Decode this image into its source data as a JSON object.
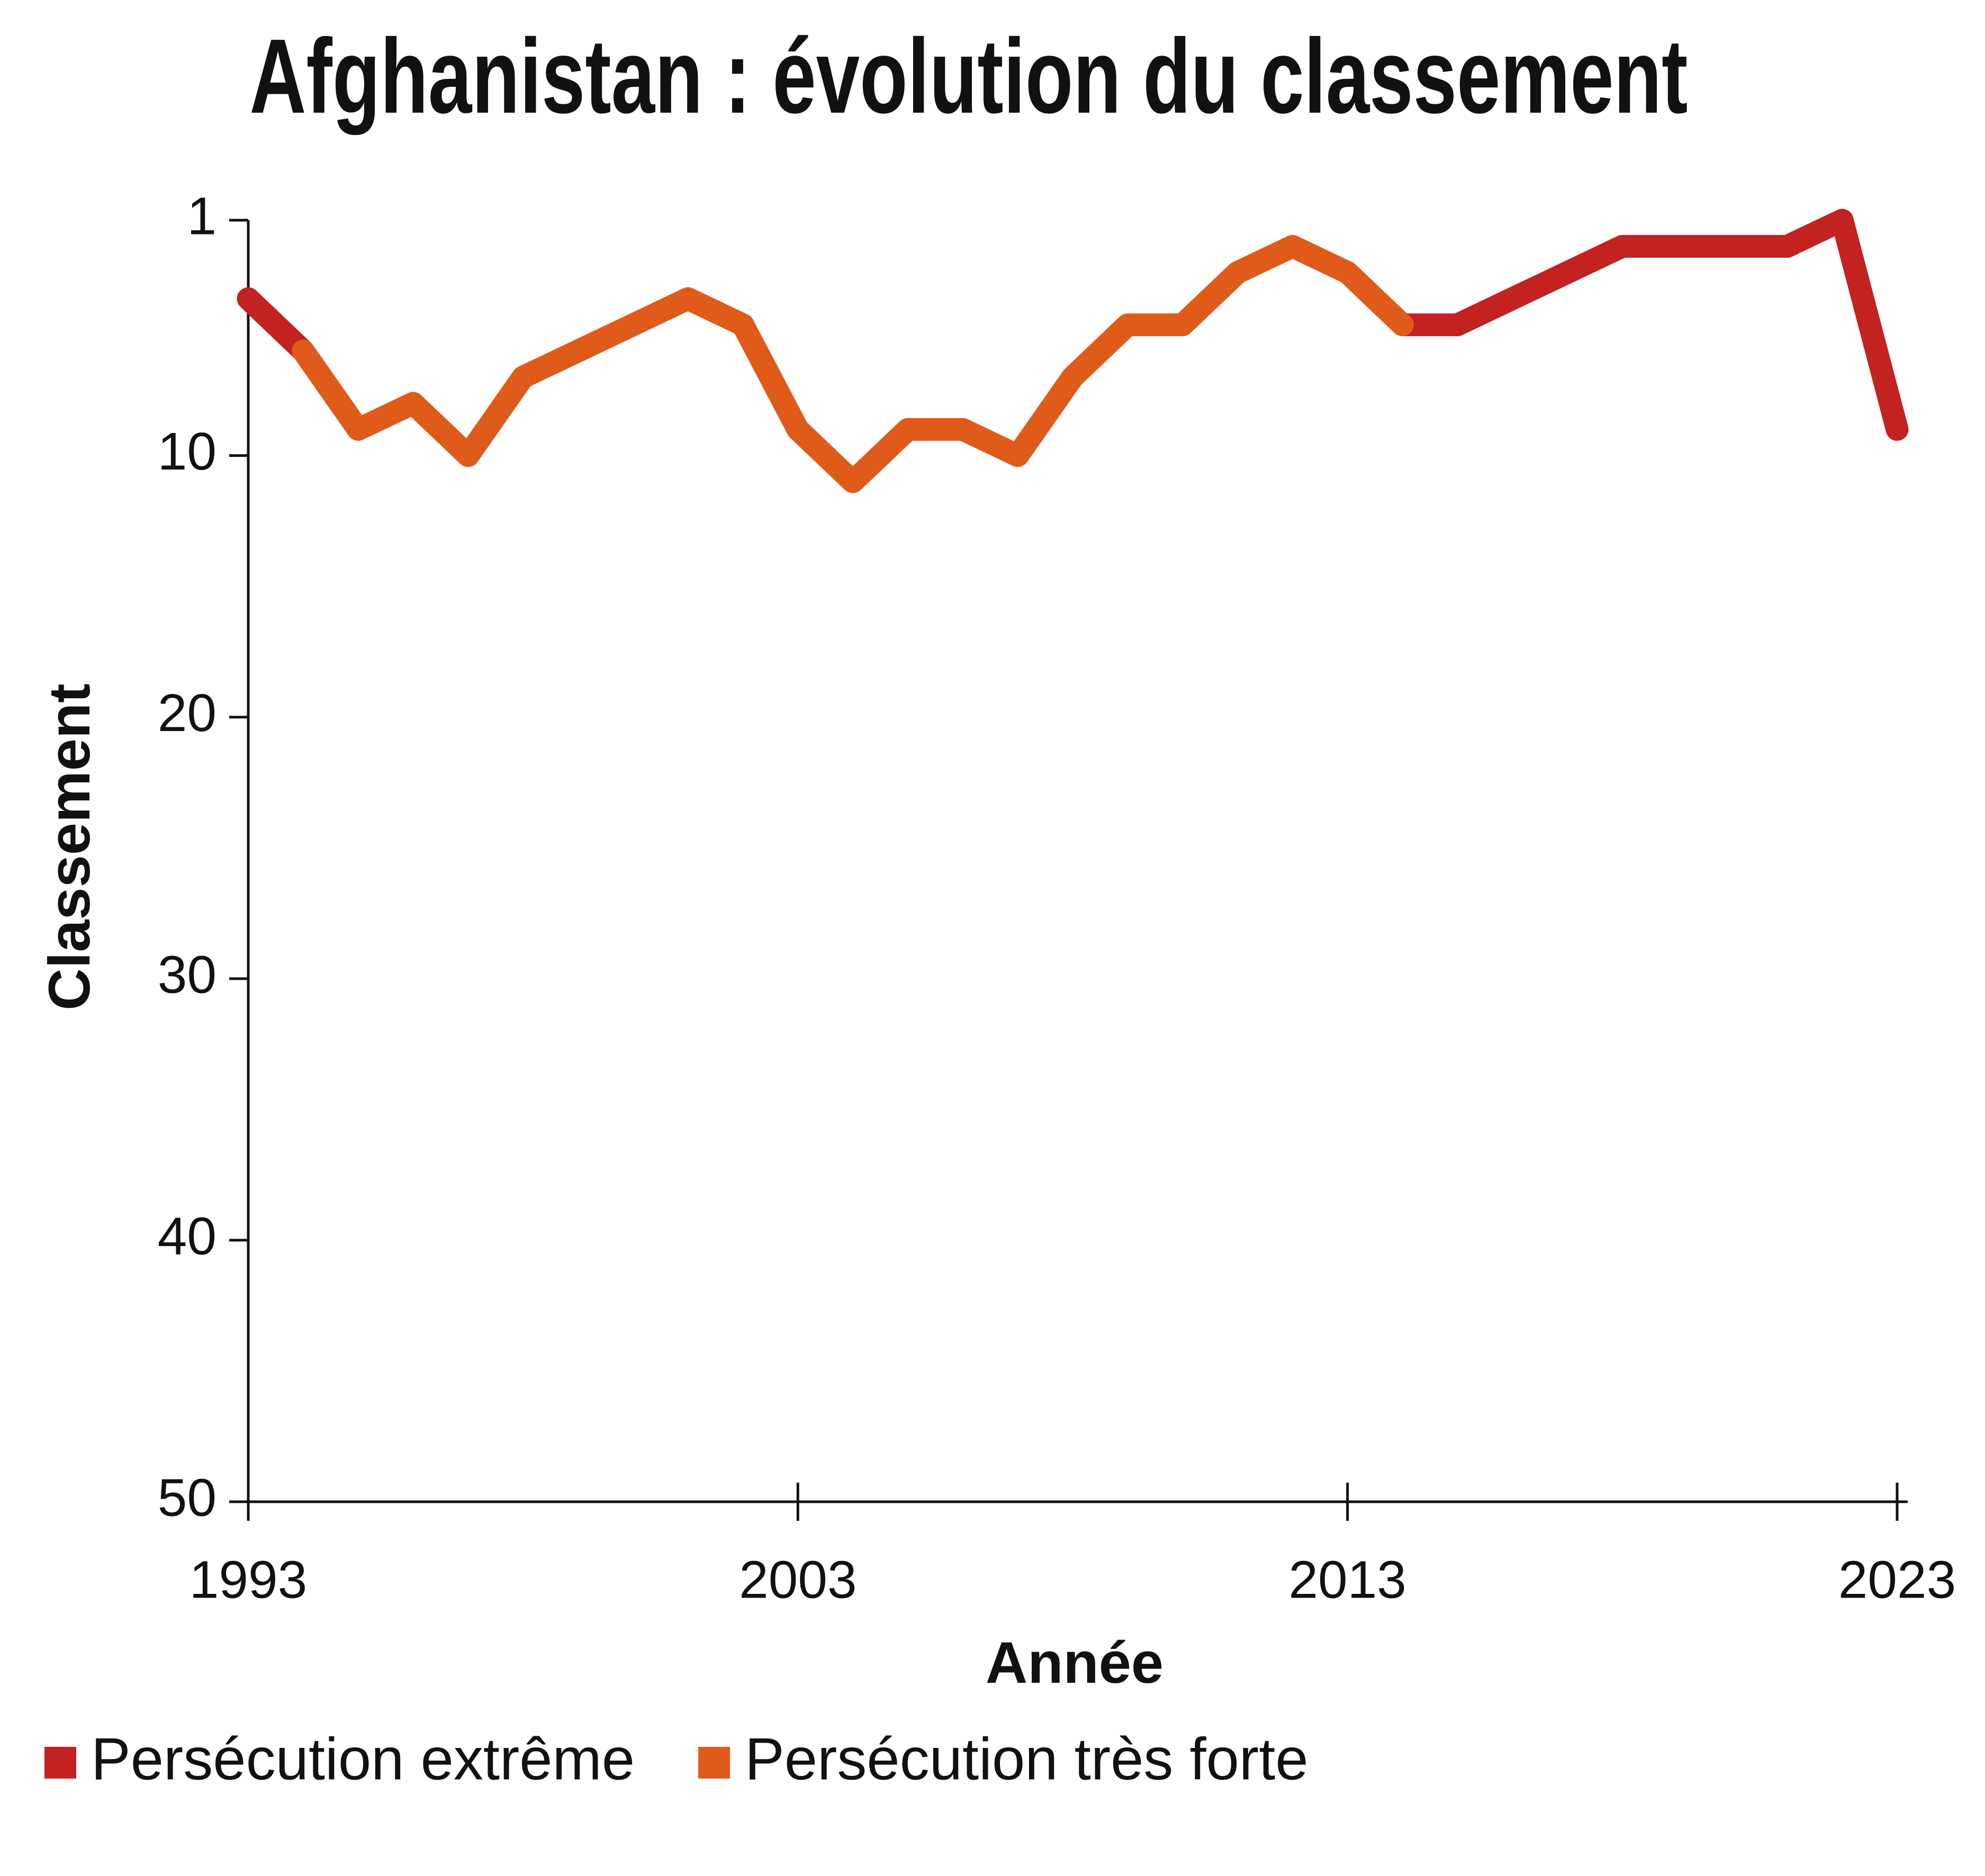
{
  "chart_data": {
    "type": "line",
    "title": "Afghanistan : évolution du classement",
    "x_label": "Année",
    "y_label": "Classement",
    "x": [
      1993,
      1994,
      1995,
      1996,
      1997,
      1998,
      1999,
      2000,
      2001,
      2002,
      2003,
      2004,
      2005,
      2006,
      2007,
      2008,
      2009,
      2010,
      2011,
      2012,
      2013,
      2014,
      2015,
      2016,
      2017,
      2018,
      2019,
      2020,
      2021,
      2022,
      2023
    ],
    "series": [
      {
        "name": "Persécution extrême",
        "color": "#c42121",
        "values": [
          4,
          6,
          null,
          null,
          null,
          null,
          null,
          null,
          4,
          5,
          null,
          null,
          null,
          null,
          null,
          null,
          null,
          null,
          null,
          null,
          null,
          5,
          5,
          4,
          3,
          2,
          2,
          2,
          2,
          1,
          9
        ]
      },
      {
        "name": "Persécution très forte",
        "color": "#e05a1a",
        "values": [
          null,
          6,
          9,
          8,
          10,
          7,
          6,
          5,
          4,
          5,
          9,
          11,
          9,
          9,
          10,
          7,
          5,
          5,
          3,
          2,
          3,
          5,
          null,
          null,
          null,
          null,
          null,
          null,
          null,
          null,
          null
        ]
      }
    ],
    "xlim": [
      1993,
      2023
    ],
    "xticks": [
      1993,
      2003,
      2013,
      2023
    ],
    "ylim": [
      50,
      1
    ],
    "yticks": [
      1,
      10,
      20,
      30,
      40,
      50
    ]
  }
}
